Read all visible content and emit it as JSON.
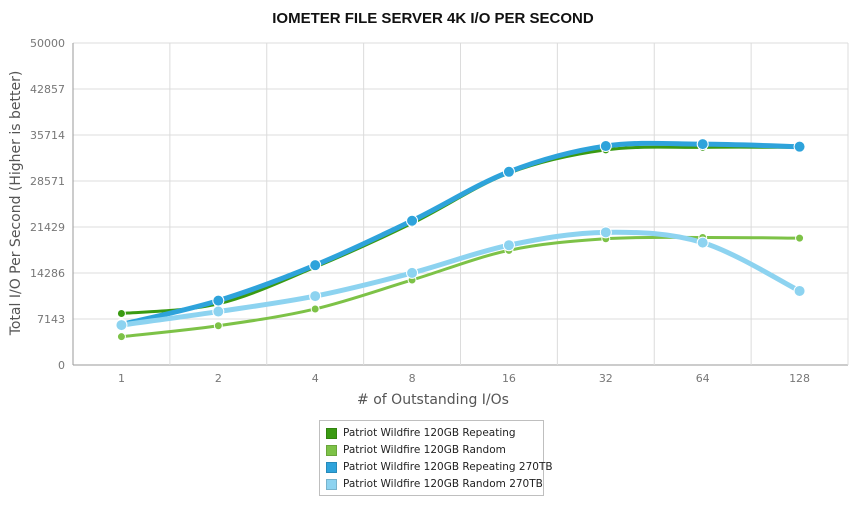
{
  "chart_data": {
    "type": "line",
    "title": "IOMETER FILE SERVER 4K I/O PER SECOND",
    "xlabel": "# of Outstanding I/Os",
    "ylabel": "Total I/O Per Second (Higher is better)",
    "categories": [
      "1",
      "2",
      "4",
      "8",
      "16",
      "32",
      "64",
      "128"
    ],
    "ylim": [
      0,
      50000
    ],
    "yticks": [
      "0",
      "7143",
      "14286",
      "21429",
      "28571",
      "35714",
      "42857",
      "50000"
    ],
    "grid": true,
    "legend_position": "bottom-center",
    "series": [
      {
        "name": "Patriot Wildfire 120GB Repeating",
        "color": "#3a9a12",
        "values": [
          8000,
          9500,
          15200,
          22000,
          29800,
          33400,
          33800,
          33800
        ]
      },
      {
        "name": "Patriot Wildfire 120GB Random",
        "color": "#7dc247",
        "values": [
          4400,
          6100,
          8700,
          13200,
          17800,
          19600,
          19800,
          19700
        ]
      },
      {
        "name": "Patriot Wildfire 120GB Repeating 270TB",
        "color": "#2ea3db",
        "values": [
          6300,
          10000,
          15500,
          22400,
          30000,
          34000,
          34300,
          33900
        ]
      },
      {
        "name": "Patriot Wildfire 120GB Random 270TB",
        "color": "#8dd3f0",
        "values": [
          6200,
          8300,
          10700,
          14300,
          18600,
          20600,
          19000,
          11500
        ]
      }
    ]
  }
}
